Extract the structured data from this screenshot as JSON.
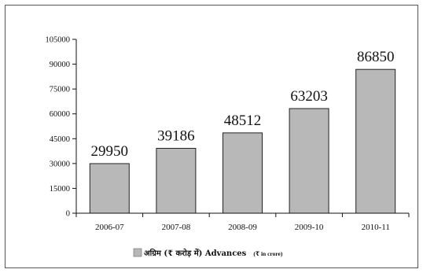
{
  "chart_data": {
    "type": "bar",
    "categories": [
      "2006-07",
      "2007-08",
      "2008-09",
      "2009-10",
      "2010-11"
    ],
    "values": [
      29950,
      39186,
      48512,
      63203,
      86850
    ],
    "data_labels": [
      "29950",
      "39186",
      "48512",
      "63203",
      "86850"
    ],
    "yticks": [
      "0",
      "15000",
      "30000",
      "45000",
      "60000",
      "75000",
      "90000",
      "105000"
    ],
    "ylim": [
      0,
      105000
    ],
    "bar_color": "#b8b8b8",
    "grid": false,
    "legend_position": "bottom-center",
    "series": [
      {
        "name_main": "अग्रिम (₹ करोड़ में) Advances",
        "name_unit": "(₹ in crore)"
      }
    ]
  }
}
